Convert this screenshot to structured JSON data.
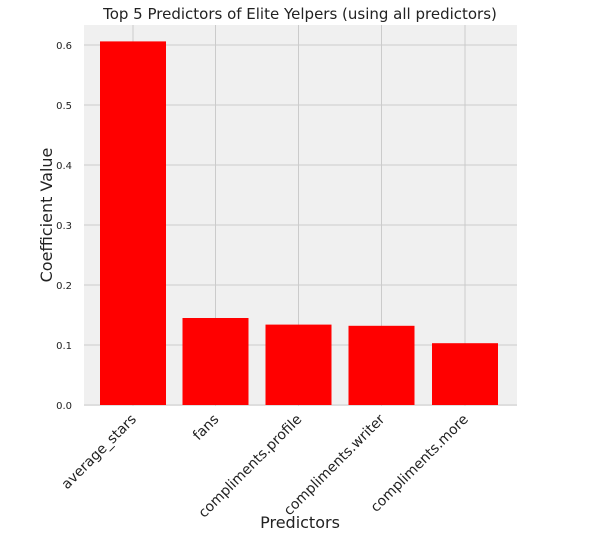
{
  "chart_data": {
    "type": "bar",
    "title": "Top 5 Predictors of Elite Yelpers (using all predictors)",
    "xlabel": "Predictors",
    "ylabel": "Coefficient Value",
    "categories": [
      "average_stars",
      "fans",
      "compliments.profile",
      "compliments.writer",
      "compliments.more"
    ],
    "values": [
      0.606,
      0.145,
      0.134,
      0.132,
      0.103
    ],
    "ylim": [
      0,
      0.64
    ],
    "yticks": [
      0.0,
      0.1,
      0.2,
      0.3,
      0.4,
      0.5,
      0.6
    ],
    "ytick_labels": [
      "0.0",
      "0.1",
      "0.2",
      "0.3",
      "0.4",
      "0.5",
      "0.6"
    ],
    "grid": true,
    "colors": {
      "bar": "#ff0000",
      "plot_background": "#f0f0f0",
      "grid": "#cbcbcb",
      "text": "#222222"
    }
  }
}
